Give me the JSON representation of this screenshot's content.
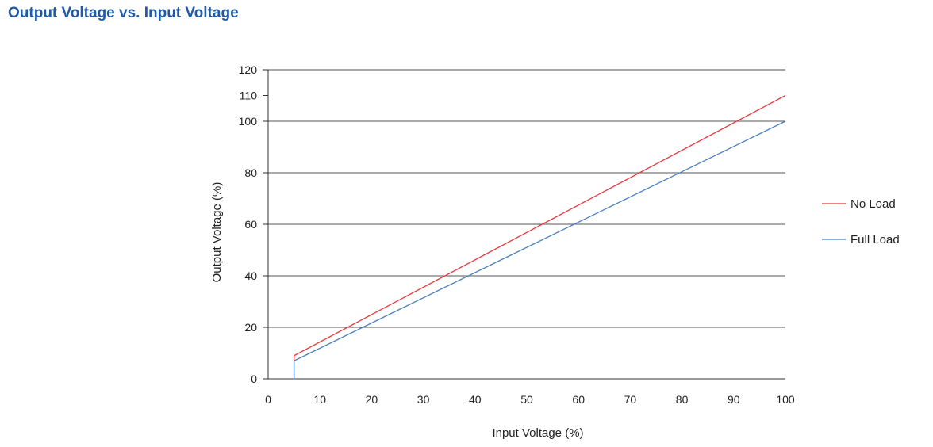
{
  "title": "Output Voltage vs. Input Voltage",
  "chart_data": {
    "type": "line",
    "title": "Output Voltage vs. Input Voltage",
    "xlabel": "Input  Voltage (%)",
    "ylabel": "Output  Voltage (%)",
    "xlim": [
      0,
      100
    ],
    "ylim": [
      0,
      120
    ],
    "xticks": [
      0,
      10,
      20,
      30,
      40,
      50,
      60,
      70,
      80,
      90,
      100
    ],
    "yticks": [
      0,
      20,
      40,
      60,
      80,
      100,
      110,
      120
    ],
    "ygrid": [
      20,
      40,
      60,
      80,
      100,
      120
    ],
    "grid": "horizontal",
    "legend_position": "right",
    "series": [
      {
        "name": "No Load",
        "color": "#e8383d",
        "points": [
          [
            5,
            0
          ],
          [
            5,
            9
          ],
          [
            100,
            110
          ]
        ]
      },
      {
        "name": "Full Load",
        "color": "#4a7fc1",
        "points": [
          [
            5,
            0
          ],
          [
            5,
            7
          ],
          [
            100,
            100
          ]
        ]
      }
    ],
    "colors": {
      "title": "#1f5aa6",
      "grid": "#555555",
      "axis": "#333333"
    }
  }
}
